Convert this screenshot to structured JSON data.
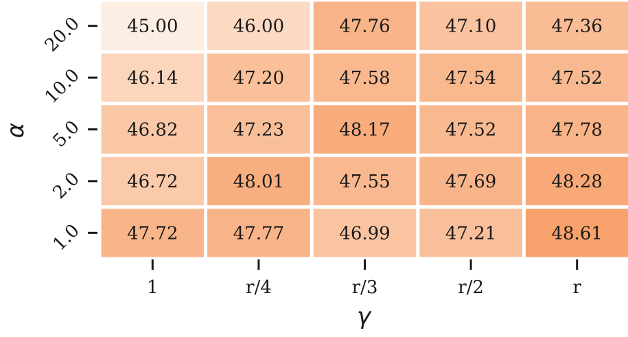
{
  "chart_data": {
    "type": "heatmap",
    "title": "",
    "xlabel": "γ",
    "ylabel": "α",
    "x_categories": [
      "1",
      "r/4",
      "r/3",
      "r/2",
      "r"
    ],
    "y_categories": [
      "20.0",
      "10.0",
      "5.0",
      "2.0",
      "1.0"
    ],
    "values": [
      [
        45.0,
        46.0,
        47.76,
        47.1,
        47.36
      ],
      [
        46.14,
        47.2,
        47.58,
        47.54,
        47.52
      ],
      [
        46.82,
        47.23,
        48.17,
        47.52,
        47.78
      ],
      [
        46.72,
        48.01,
        47.55,
        47.69,
        48.28
      ],
      [
        47.72,
        47.77,
        46.99,
        47.21,
        48.61
      ]
    ],
    "value_labels": [
      [
        "45.00",
        "46.00",
        "47.76",
        "47.10",
        "47.36"
      ],
      [
        "46.14",
        "47.20",
        "47.58",
        "47.54",
        "47.52"
      ],
      [
        "46.82",
        "47.23",
        "48.17",
        "47.52",
        "47.78"
      ],
      [
        "46.72",
        "48.01",
        "47.55",
        "47.69",
        "48.28"
      ],
      [
        "47.72",
        "47.77",
        "46.99",
        "47.21",
        "48.61"
      ]
    ],
    "colormap": {
      "low_color": "#fdeee3",
      "high_color": "#f7a26c",
      "vmin": 45.0,
      "vmax": 48.61
    },
    "grid": false,
    "legend": "none"
  }
}
